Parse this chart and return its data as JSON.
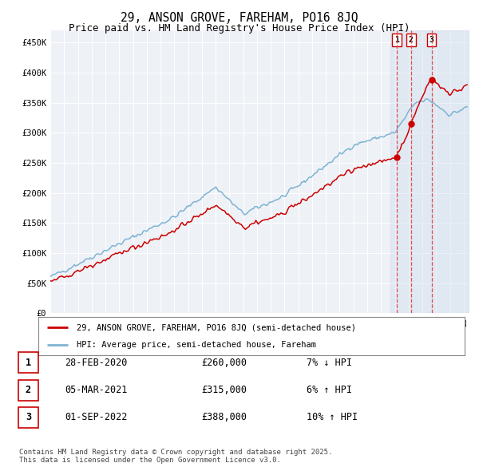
{
  "title_line1": "29, ANSON GROVE, FAREHAM, PO16 8JQ",
  "title_line2": "Price paid vs. HM Land Registry's House Price Index (HPI)",
  "title_fontsize": 10.5,
  "subtitle_fontsize": 9,
  "ylabel_ticks": [
    "£0",
    "£50K",
    "£100K",
    "£150K",
    "£200K",
    "£250K",
    "£300K",
    "£350K",
    "£400K",
    "£450K"
  ],
  "ytick_values": [
    0,
    50000,
    100000,
    150000,
    200000,
    250000,
    300000,
    350000,
    400000,
    450000
  ],
  "ylim": [
    0,
    470000
  ],
  "sale_prices": [
    260000,
    315000,
    388000
  ],
  "sale_labels": [
    "1",
    "2",
    "3"
  ],
  "vline_color_dashed": "#e05050",
  "sale_marker_color": "#cc0000",
  "hpi_line_color": "#7fb3d3",
  "price_line_color": "#cc0000",
  "background_chart": "#eef2f7",
  "grid_color": "#ffffff",
  "shade_color": "#c8d8ea",
  "legend_label_red": "29, ANSON GROVE, FAREHAM, PO16 8JQ (semi-detached house)",
  "legend_label_blue": "HPI: Average price, semi-detached house, Fareham",
  "footnote": "Contains HM Land Registry data © Crown copyright and database right 2025.\nThis data is licensed under the Open Government Licence v3.0.",
  "table_rows": [
    [
      "1",
      "28-FEB-2020",
      "£260,000",
      "7% ↓ HPI"
    ],
    [
      "2",
      "05-MAR-2021",
      "£315,000",
      "6% ↑ HPI"
    ],
    [
      "3",
      "01-SEP-2022",
      "£388,000",
      "10% ↑ HPI"
    ]
  ]
}
